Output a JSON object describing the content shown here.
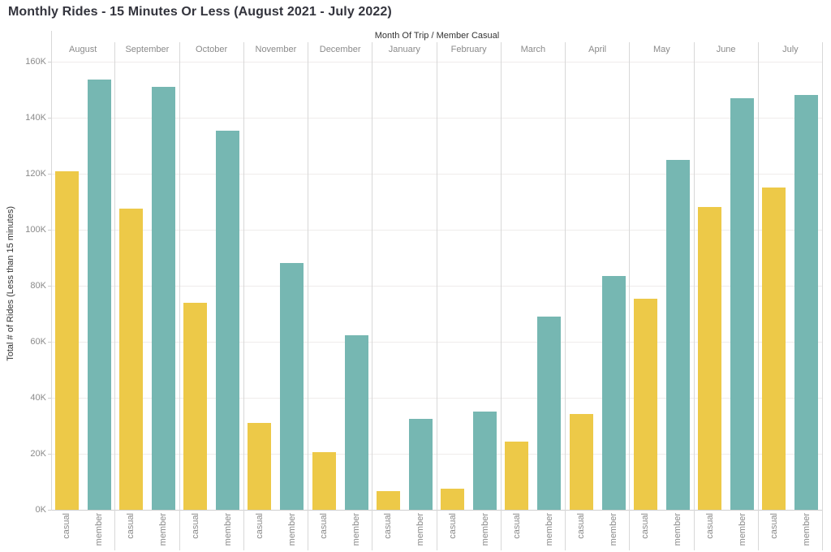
{
  "title": "Monthly Rides - 15 Minutes Or Less (August 2021 - July 2022)",
  "chart_data": {
    "type": "bar",
    "title": "Monthly Rides - 15 Minutes Or Less (August 2021 - July 2022)",
    "column_header": "Month Of Trip  /  Member Casual",
    "categories": [
      "August",
      "September",
      "October",
      "November",
      "December",
      "January",
      "February",
      "March",
      "April",
      "May",
      "June",
      "July"
    ],
    "series": [
      {
        "name": "casual",
        "color": "#EDC948",
        "values": [
          121000,
          107500,
          74000,
          31000,
          20500,
          6700,
          7600,
          24400,
          34100,
          75300,
          108000,
          115000
        ]
      },
      {
        "name": "member",
        "color": "#76B7B2",
        "values": [
          153500,
          151000,
          135500,
          88200,
          62300,
          32500,
          35100,
          69000,
          83400,
          125000,
          147000,
          148000
        ]
      }
    ],
    "xlabel": "",
    "ylabel": "Total # of Rides (Less than 15 minutes)",
    "ylim": [
      0,
      160000
    ],
    "ytick_interval": 20000,
    "ytick_labels": [
      "0K",
      "20K",
      "40K",
      "60K",
      "80K",
      "100K",
      "120K",
      "140K",
      "160K"
    ],
    "grid": true,
    "legend_position": "none",
    "colors": {
      "casual": "#EDC948",
      "member": "#76B7B2",
      "title_text": "#33343d",
      "axis_text": "#8a8a8a",
      "header_text": "#333333",
      "gridline": "#efeceb",
      "separator": "#d8d8d8"
    }
  }
}
